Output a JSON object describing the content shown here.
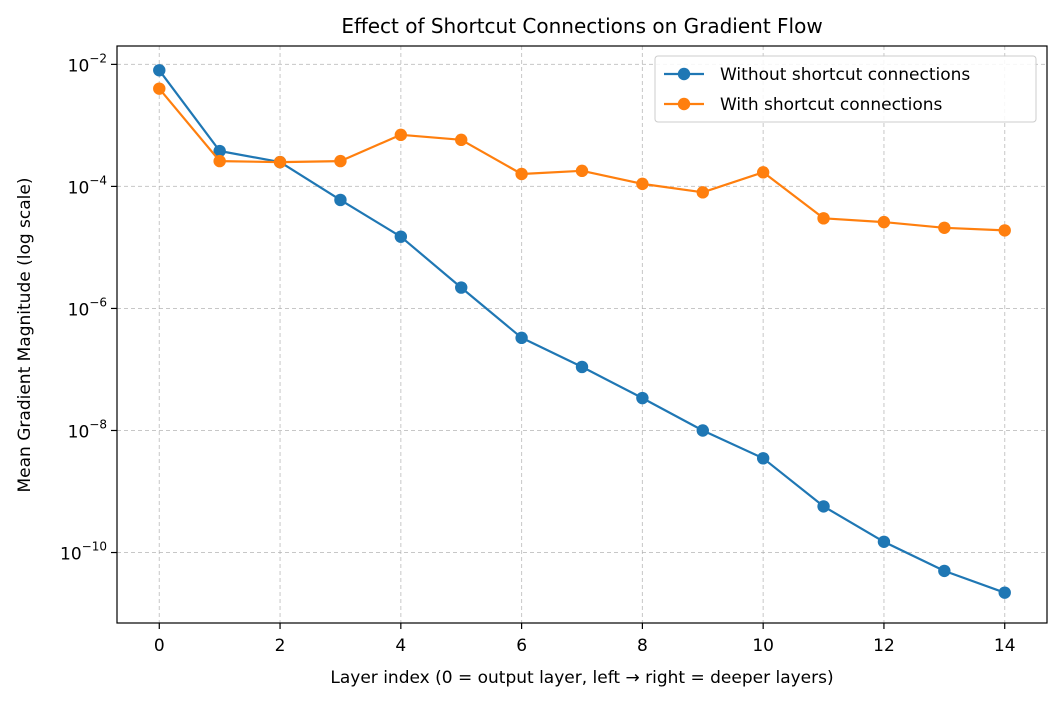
{
  "chart_data": {
    "type": "line",
    "title": "Effect of Shortcut Connections on Gradient Flow",
    "xlabel": "Layer index (0 = output layer, left → right = deeper layers)",
    "ylabel": "Mean Gradient Magnitude (log scale)",
    "yscale": "log",
    "xlim": [
      -0.7,
      14.7
    ],
    "ylim": [
      7e-12,
      0.02
    ],
    "grid": true,
    "legend_position": "top-right",
    "x_ticks": [
      0,
      2,
      4,
      6,
      8,
      10,
      12,
      14
    ],
    "y_ticks": [
      {
        "base": "10",
        "exp": "−2",
        "value": 0.01
      },
      {
        "base": "10",
        "exp": "−4",
        "value": 0.0001
      },
      {
        "base": "10",
        "exp": "−6",
        "value": 1e-06
      },
      {
        "base": "10",
        "exp": "−8",
        "value": 1e-08
      },
      {
        "base": "10",
        "exp": "−10",
        "value": 1e-10
      }
    ],
    "x": [
      0,
      1,
      2,
      3,
      4,
      5,
      6,
      7,
      8,
      9,
      10,
      11,
      12,
      13,
      14
    ],
    "series": [
      {
        "name": "Without shortcut connections",
        "color": "#1f77b4",
        "values": [
          0.008,
          0.00038,
          0.00025,
          6e-05,
          1.5e-05,
          2.2e-06,
          3.3e-07,
          1.1e-07,
          3.4e-08,
          1e-08,
          3.5e-09,
          5.7e-10,
          1.5e-10,
          5e-11,
          2.2e-11
        ]
      },
      {
        "name": "With shortcut connections",
        "color": "#ff7f0e",
        "values": [
          0.004,
          0.00026,
          0.00025,
          0.00026,
          0.0007,
          0.00058,
          0.00016,
          0.00018,
          0.00011,
          8e-05,
          0.00017,
          3e-05,
          2.6e-05,
          2.1e-05,
          1.9e-05
        ]
      }
    ]
  }
}
